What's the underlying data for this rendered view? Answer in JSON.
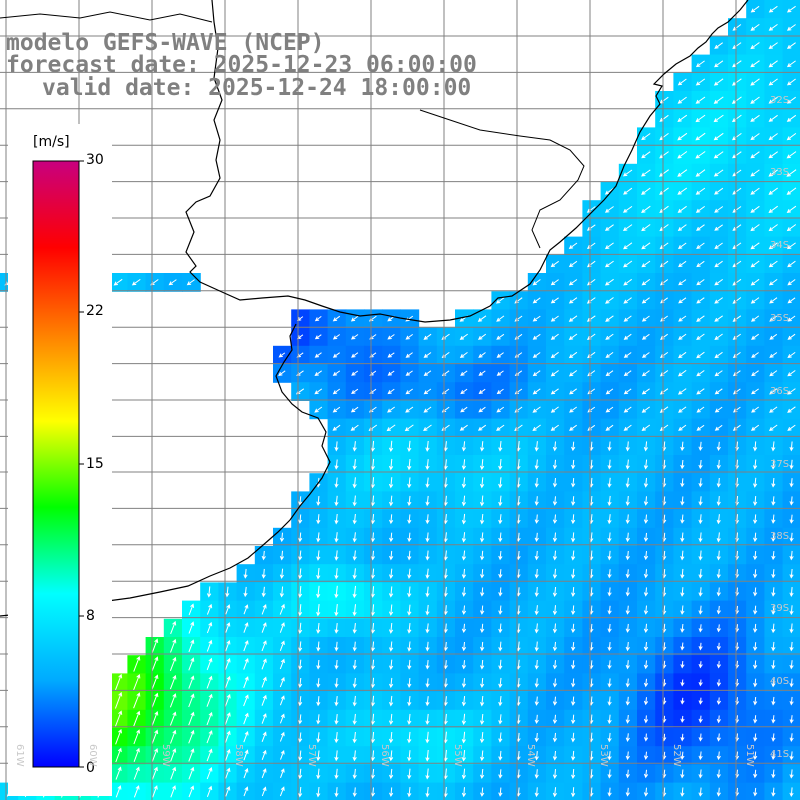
{
  "title": {
    "line1": "modelo GEFS-WAVE (NCEP)",
    "line2": "forecast date: 2025-12-23 06:00:00",
    "line3": "valid date: 2025-12-24 18:00:00"
  },
  "colorbar": {
    "unit": "[m/s]",
    "ticks": [
      "30",
      "22",
      "15",
      "8",
      "0"
    ],
    "range": [
      0,
      30
    ],
    "colors": [
      "#0000ff",
      "#00aaff",
      "#00ffff",
      "#00ff00",
      "#ffff00",
      "#ff8000",
      "#ff0000",
      "#c8007f"
    ]
  },
  "grid": {
    "lat_labels": [
      "32S",
      "33S",
      "34S",
      "35S",
      "36S",
      "37S",
      "38S",
      "39S",
      "40S",
      "41S"
    ],
    "lon_labels": [
      "61W",
      "60W",
      "59W",
      "58W",
      "57W",
      "56W",
      "55W",
      "54W",
      "53W",
      "52W",
      "51W"
    ]
  },
  "colors": {
    "land": "#ffffff",
    "coast": "#000000",
    "gridline": "#808080",
    "arrow": "#ffffff"
  }
}
